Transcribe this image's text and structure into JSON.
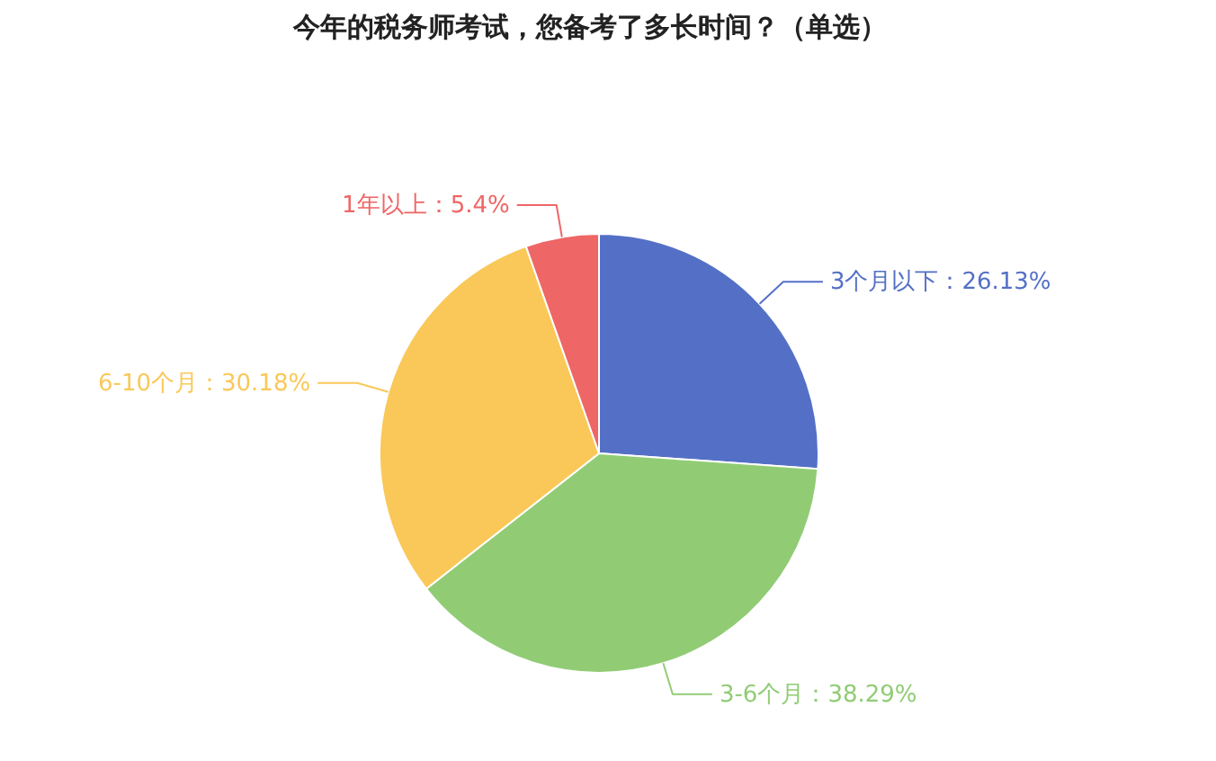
{
  "chart_data": {
    "type": "pie",
    "title": "今年的税务师考试，您备考了多长时间？（单选）",
    "categories": [
      "3个月以下",
      "3-6个月",
      "6-10个月",
      "1年以上"
    ],
    "values": [
      26.13,
      38.29,
      30.18,
      5.4
    ],
    "colors": [
      "#5470c6",
      "#91cc75",
      "#fac858",
      "#ee6666"
    ],
    "value_labels": [
      "26.13%",
      "38.29%",
      "30.18%",
      "5.4%"
    ],
    "legend": false
  }
}
